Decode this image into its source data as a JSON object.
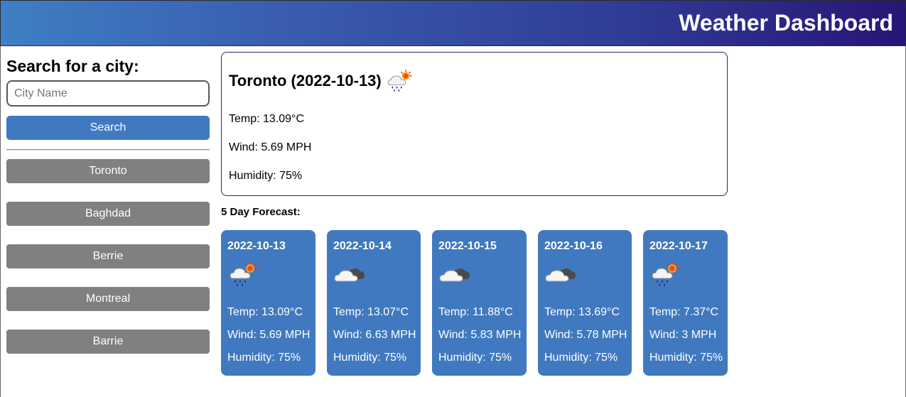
{
  "header": {
    "title": "Weather Dashboard"
  },
  "sidebar": {
    "heading": "Search for a city:",
    "search_placeholder": "City Name",
    "search_value": "",
    "search_button": "Search",
    "history": [
      "Toronto",
      "Baghdad",
      "Berrie",
      "Montreal",
      "Barrie"
    ]
  },
  "current": {
    "title": "Toronto (2022-10-13)",
    "icon": "rain-sun-icon",
    "temp": "Temp: 13.09°C",
    "wind": "Wind: 5.69 MPH",
    "humidity": "Humidity: 75%"
  },
  "forecast": {
    "heading": "5 Day Forecast:",
    "days": [
      {
        "date": "2022-10-13",
        "icon": "rain-sun-icon",
        "temp": "Temp: 13.09°C",
        "wind": "Wind: 5.69 MPH",
        "humidity": "Humidity: 75%"
      },
      {
        "date": "2022-10-14",
        "icon": "cloudy-icon",
        "temp": "Temp: 13.07°C",
        "wind": "Wind: 6.63 MPH",
        "humidity": "Humidity: 75%"
      },
      {
        "date": "2022-10-15",
        "icon": "cloudy-icon",
        "temp": "Temp: 11.88°C",
        "wind": "Wind: 5.83 MPH",
        "humidity": "Humidity: 75%"
      },
      {
        "date": "2022-10-16",
        "icon": "cloudy-icon",
        "temp": "Temp: 13.69°C",
        "wind": "Wind: 5.78 MPH",
        "humidity": "Humidity: 75%"
      },
      {
        "date": "2022-10-17",
        "icon": "rain-sun-icon",
        "temp": "Temp: 7.37°C",
        "wind": "Wind: 3 MPH",
        "humidity": "Humidity: 75%"
      }
    ]
  },
  "colors": {
    "header_gradient_start": "#3f7fc3",
    "header_gradient_end": "#281575",
    "accent_blue": "#4079c0",
    "history_gray": "#808080",
    "card_border": "#2b2767"
  }
}
